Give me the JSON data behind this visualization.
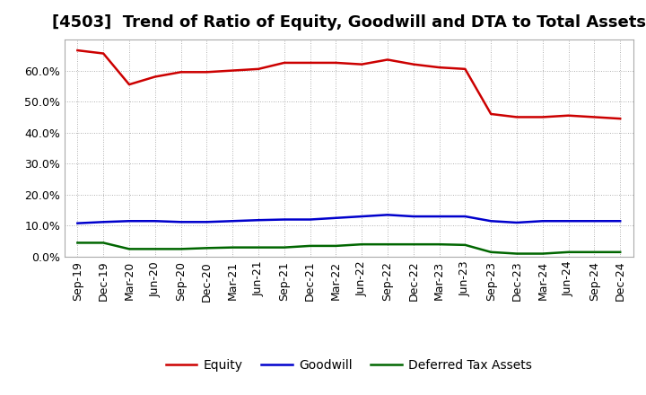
{
  "title": "[4503]  Trend of Ratio of Equity, Goodwill and DTA to Total Assets",
  "x_labels": [
    "Sep-19",
    "Dec-19",
    "Mar-20",
    "Jun-20",
    "Sep-20",
    "Dec-20",
    "Mar-21",
    "Jun-21",
    "Sep-21",
    "Dec-21",
    "Mar-22",
    "Jun-22",
    "Sep-22",
    "Dec-22",
    "Mar-23",
    "Jun-23",
    "Sep-23",
    "Dec-23",
    "Mar-24",
    "Jun-24",
    "Sep-24",
    "Dec-24"
  ],
  "equity": [
    66.5,
    65.5,
    55.5,
    58.0,
    59.5,
    59.5,
    60.0,
    60.5,
    62.5,
    62.5,
    62.5,
    62.0,
    63.5,
    62.0,
    61.0,
    60.5,
    46.0,
    45.0,
    45.0,
    45.5,
    45.0,
    44.5
  ],
  "goodwill": [
    10.8,
    11.2,
    11.5,
    11.5,
    11.2,
    11.2,
    11.5,
    11.8,
    12.0,
    12.0,
    12.5,
    13.0,
    13.5,
    13.0,
    13.0,
    13.0,
    11.5,
    11.0,
    11.5,
    11.5,
    11.5,
    11.5
  ],
  "dta": [
    4.5,
    4.5,
    2.5,
    2.5,
    2.5,
    2.8,
    3.0,
    3.0,
    3.0,
    3.5,
    3.5,
    4.0,
    4.0,
    4.0,
    4.0,
    3.8,
    1.5,
    1.0,
    1.0,
    1.5,
    1.5,
    1.5
  ],
  "equity_color": "#cc0000",
  "goodwill_color": "#0000cc",
  "dta_color": "#006600",
  "background_color": "#ffffff",
  "grid_color": "#999999",
  "ylim": [
    0,
    70
  ],
  "yticks": [
    0,
    10,
    20,
    30,
    40,
    50,
    60
  ],
  "legend_labels": [
    "Equity",
    "Goodwill",
    "Deferred Tax Assets"
  ],
  "title_fontsize": 13,
  "tick_fontsize": 9,
  "legend_fontsize": 10,
  "line_width": 1.8
}
